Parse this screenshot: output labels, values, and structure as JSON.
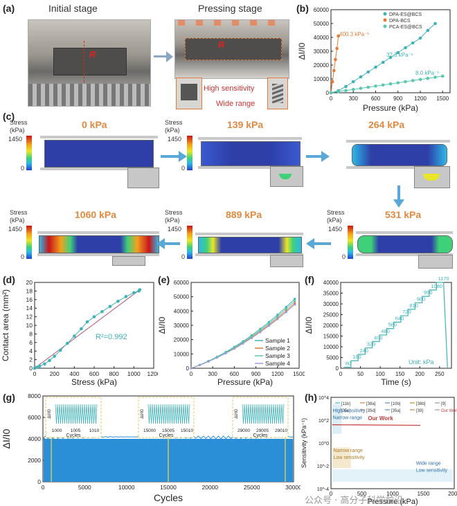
{
  "panels": {
    "a": {
      "label": "(a)",
      "title_initial": "Initial stage",
      "title_pressing": "Pressing stage",
      "r_label": "R",
      "hs_label": "High sensitivity",
      "wr_label": "Wide range"
    },
    "b": {
      "label": "(b)"
    },
    "c": {
      "label": "(c)",
      "stress_title": "Stress",
      "stress_unit": "(kPa)",
      "max": "1450",
      "min": "0",
      "frames": [
        {
          "kpa": "0 kPa"
        },
        {
          "kpa": "139 kPa"
        },
        {
          "kpa": "264 kPa"
        },
        {
          "kpa": "531 kPa"
        },
        {
          "kpa": "889 kPa"
        },
        {
          "kpa": "1060 kPa"
        }
      ]
    },
    "d": {
      "label": "(d)"
    },
    "e": {
      "label": "(e)"
    },
    "f": {
      "label": "(f)"
    },
    "g": {
      "label": "(g)"
    },
    "h": {
      "label": "(h)"
    }
  },
  "watermark": "公众号 · 高分子科学前沿",
  "colors": {
    "teal": "#3fb2b8",
    "orange": "#e07b39",
    "blue_fill": "#2a8fd6"
  },
  "chart_data": [
    {
      "id": "b",
      "type": "scatter",
      "xlabel": "Pressure (kPa)",
      "ylabel": "ΔI/I0",
      "xlim": [
        0,
        1600
      ],
      "ylim": [
        0,
        60000
      ],
      "xticks": [
        0,
        300,
        600,
        900,
        1200,
        1500
      ],
      "yticks": [
        0,
        10000,
        20000,
        30000,
        40000,
        50000,
        60000
      ],
      "series": [
        {
          "name": "DPA-ES@BCS",
          "color": "#3fb2b8",
          "x": [
            0,
            100,
            200,
            300,
            400,
            500,
            600,
            700,
            800,
            900,
            1000,
            1100,
            1200,
            1300,
            1400
          ],
          "y": [
            0,
            1500,
            4500,
            8000,
            11500,
            15000,
            18500,
            22000,
            25500,
            29000,
            32500,
            36000,
            39500,
            45000,
            50000
          ]
        },
        {
          "name": "DPA-BCS",
          "color": "#e07b39",
          "x": [
            0,
            20,
            40,
            60,
            80,
            100
          ],
          "y": [
            0,
            8000,
            16000,
            24000,
            32000,
            41000
          ]
        },
        {
          "name": "PCA-ES@BCS",
          "color": "#58c7b0",
          "x": [
            0,
            100,
            200,
            300,
            400,
            500,
            600,
            700,
            800,
            900,
            1000,
            1100,
            1200,
            1300,
            1400,
            1500
          ],
          "y": [
            0,
            800,
            1600,
            2400,
            3200,
            4000,
            4800,
            5600,
            6400,
            7200,
            8000,
            8800,
            9600,
            10400,
            11200,
            12000
          ]
        }
      ],
      "annotations": [
        "400.3 kPa⁻¹",
        "37.3 kPa⁻¹",
        "8.0 kPa⁻¹"
      ]
    },
    {
      "id": "d",
      "type": "line",
      "xlabel": "Stress (kPa)",
      "ylabel": "Contact area (mm²)",
      "xlim": [
        0,
        1200
      ],
      "ylim": [
        0,
        20
      ],
      "xticks": [
        0,
        200,
        400,
        600,
        800,
        1000,
        1200
      ],
      "yticks": [
        0,
        2,
        4,
        6,
        8,
        10,
        12,
        14,
        16,
        18,
        20
      ],
      "x": [
        0,
        20,
        50,
        100,
        150,
        200,
        260,
        330,
        400,
        470,
        530,
        600,
        680,
        760,
        840,
        920,
        1000,
        1050,
        1060
      ],
      "y": [
        0,
        0.2,
        0.5,
        1.0,
        1.8,
        2.8,
        4.2,
        5.8,
        7.5,
        9.2,
        10.8,
        12.0,
        13.2,
        14.4,
        15.6,
        16.7,
        17.6,
        18.0,
        18.3
      ],
      "annotation": "R²=0.992"
    },
    {
      "id": "e",
      "type": "line",
      "xlabel": "Pressure (kPa)",
      "ylabel": "ΔI/I0",
      "xlim": [
        0,
        1500
      ],
      "ylim": [
        0,
        60000
      ],
      "xticks": [
        0,
        300,
        600,
        900,
        1200,
        1500
      ],
      "yticks": [
        0,
        10000,
        20000,
        30000,
        40000,
        50000,
        60000
      ],
      "series": [
        {
          "name": "Sample 1",
          "color": "#3fb2b8",
          "endY": 49000
        },
        {
          "name": "Sample 2",
          "color": "#e07b39",
          "endY": 46000
        },
        {
          "name": "Sample 3",
          "color": "#5ac6a8",
          "endY": 47500
        },
        {
          "name": "Sample 4",
          "color": "#9a9ad8",
          "endY": 45000
        }
      ]
    },
    {
      "id": "f",
      "type": "line",
      "xlabel": "Time (s)",
      "ylabel": "ΔI/I0",
      "xlim": [
        0,
        280
      ],
      "ylim": [
        0,
        40000
      ],
      "xticks": [
        0,
        50,
        100,
        150,
        200,
        250
      ],
      "yticks": [
        0,
        5000,
        10000,
        15000,
        20000,
        25000,
        30000,
        35000,
        40000
      ],
      "steps": [
        {
          "label": "80",
          "y": 500
        },
        {
          "label": "160",
          "y": 3500
        },
        {
          "label": "240",
          "y": 6500
        },
        {
          "label": "320",
          "y": 9500
        },
        {
          "label": "400",
          "y": 12500
        },
        {
          "label": "480",
          "y": 15500
        },
        {
          "label": "560",
          "y": 18500
        },
        {
          "label": "640",
          "y": 21500
        },
        {
          "label": "720",
          "y": 24500
        },
        {
          "label": "810",
          "y": 27500
        },
        {
          "label": "900",
          "y": 30500
        },
        {
          "label": "990",
          "y": 33500
        },
        {
          "label": "1080",
          "y": 36500
        },
        {
          "label": "1170",
          "y": 40000
        }
      ],
      "unit_note": "Unit: kPa"
    },
    {
      "id": "g",
      "type": "area",
      "xlabel": "Cycles",
      "ylabel": "ΔI/I0",
      "xlim": [
        0,
        30000
      ],
      "ylim": [
        0,
        8000
      ],
      "xticks": [
        0,
        5000,
        10000,
        15000,
        20000,
        25000,
        30000
      ],
      "yticks": [
        0,
        2000,
        4000,
        6000,
        8000
      ],
      "level": 4000,
      "insets": [
        {
          "xticks": [
            "1000",
            "1005",
            "1010"
          ],
          "xlabel": "Cycles",
          "ylabel": "ΔI/I0"
        },
        {
          "xticks": [
            "15000",
            "15005",
            "15010"
          ],
          "xlabel": "Cycles",
          "ylabel": "ΔI/I0"
        },
        {
          "xticks": [
            "29000",
            "29005",
            "29010"
          ],
          "xlabel": "Cycles",
          "ylabel": "ΔI/I0"
        }
      ]
    },
    {
      "id": "h",
      "type": "line",
      "xlabel": "Pressure (kPa)",
      "ylabel": "Sensitivity (kPa⁻¹)",
      "xlim": [
        0,
        2000
      ],
      "ylim": [
        "1e-4",
        "1e4"
      ],
      "xticks": [
        0,
        500,
        1000,
        1500,
        2000
      ],
      "yticks": [
        "10^-4",
        "10^-2",
        "10^0",
        "10^2",
        "10^4"
      ],
      "legend": [
        "[11b]",
        "[38a]",
        "[10b]",
        "[38b]",
        "[9]",
        "[35c]",
        "[35d]",
        "[35a]",
        "[39]",
        "Our Work"
      ],
      "labels": [
        "High sensitivity",
        "Narrow range",
        "Our Work",
        "Narrow range",
        "Low sensitivity",
        "Wide range",
        "Low sensitivity"
      ]
    }
  ]
}
